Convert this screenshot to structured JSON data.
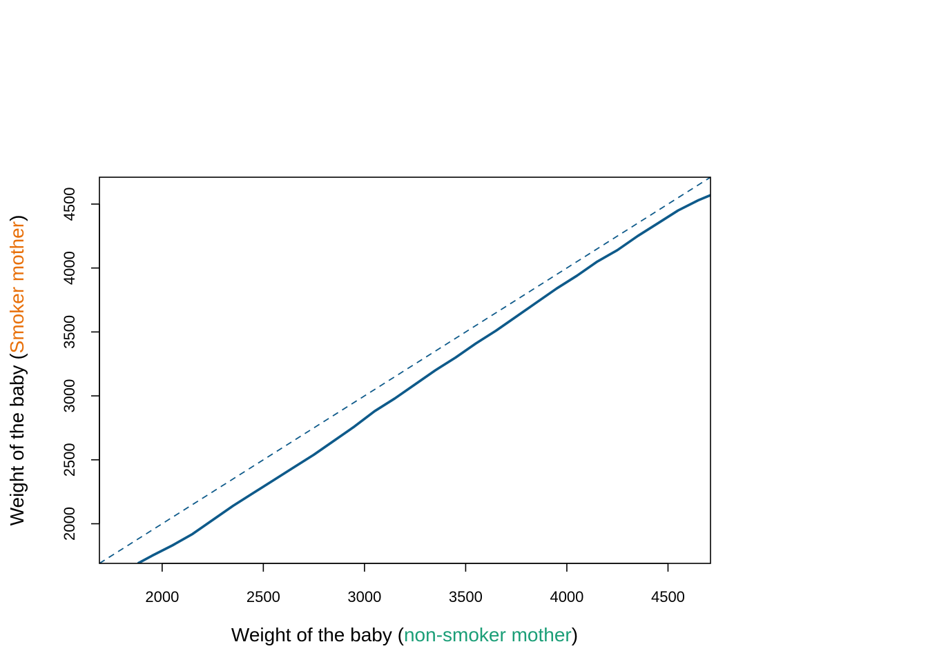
{
  "chart_data": {
    "type": "line",
    "title": "",
    "xlabel": {
      "parts": [
        "Weight of the baby (",
        "non-smoker mother",
        ")"
      ],
      "highlight_color": "#1B9E77"
    },
    "ylabel": {
      "parts": [
        "Weight of the baby (",
        "Smoker mother",
        ")"
      ],
      "highlight_color": "#E8700A"
    },
    "xlim": [
      1690,
      4710
    ],
    "ylim": [
      1690,
      4710
    ],
    "x_ticks": [
      2000,
      2500,
      3000,
      3500,
      4000,
      4500
    ],
    "y_ticks": [
      2000,
      2500,
      3000,
      3500,
      4000,
      4500
    ],
    "grid": false,
    "legend": "none",
    "series": [
      {
        "style": "solid",
        "color": "#0E5A8A",
        "x": [
          1880,
          1950,
          2050,
          2150,
          2250,
          2350,
          2450,
          2550,
          2650,
          2750,
          2850,
          2950,
          3050,
          3150,
          3250,
          3350,
          3450,
          3550,
          3650,
          3750,
          3850,
          3950,
          4050,
          4150,
          4250,
          4350,
          4450,
          4550,
          4650,
          4710
        ],
        "y": [
          1690,
          1750,
          1830,
          1920,
          2030,
          2140,
          2240,
          2340,
          2440,
          2540,
          2650,
          2760,
          2880,
          2980,
          3090,
          3200,
          3300,
          3410,
          3510,
          3620,
          3730,
          3840,
          3940,
          4050,
          4140,
          4250,
          4350,
          4450,
          4530,
          4570
        ]
      },
      {
        "style": "dashed",
        "color": "#0E5A8A",
        "x": [
          1690,
          4710
        ],
        "y": [
          1690,
          4710
        ]
      }
    ]
  }
}
